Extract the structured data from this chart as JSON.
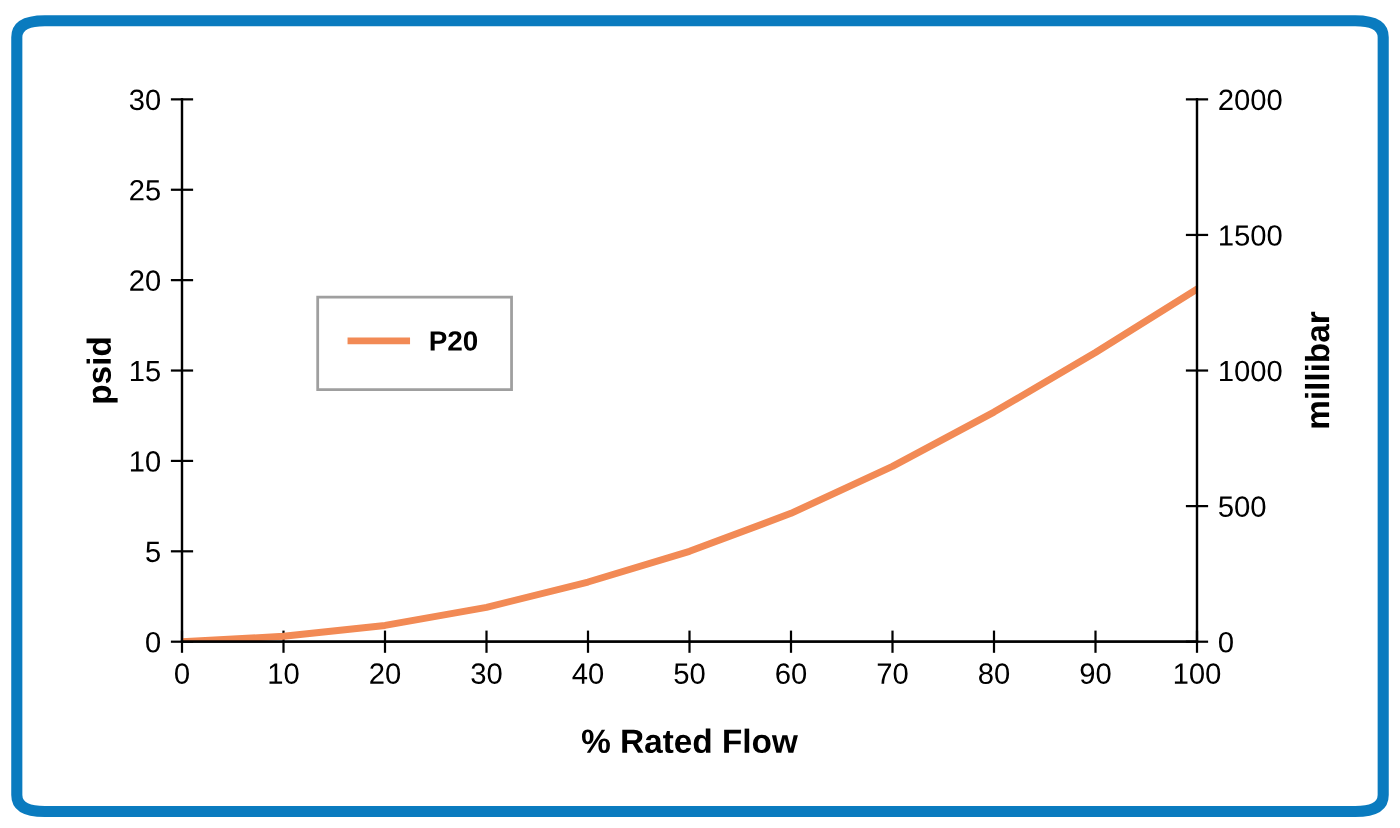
{
  "chart_data": {
    "type": "line",
    "xlabel": "% Rated Flow",
    "ylabel": "psid",
    "y2label": "millibar",
    "x": [
      0,
      10,
      20,
      30,
      40,
      50,
      60,
      70,
      80,
      90,
      100
    ],
    "series": [
      {
        "name": "P20",
        "color": "#f28a55",
        "values": [
          0,
          0.3,
          0.9,
          1.9,
          3.3,
          5.0,
          7.1,
          9.7,
          12.7,
          16.0,
          19.5
        ]
      }
    ],
    "xlim": [
      0,
      100
    ],
    "xticks": [
      0,
      10,
      20,
      30,
      40,
      50,
      60,
      70,
      80,
      90,
      100
    ],
    "ylim": [
      0,
      30
    ],
    "yticks": [
      0,
      5,
      10,
      15,
      20,
      25,
      30
    ],
    "y2lim": [
      0,
      2000
    ],
    "y2ticks": [
      0,
      500,
      1000,
      1500,
      2000
    ],
    "grid": false,
    "legend": "center left",
    "marker": "none",
    "line_style": "solid"
  }
}
